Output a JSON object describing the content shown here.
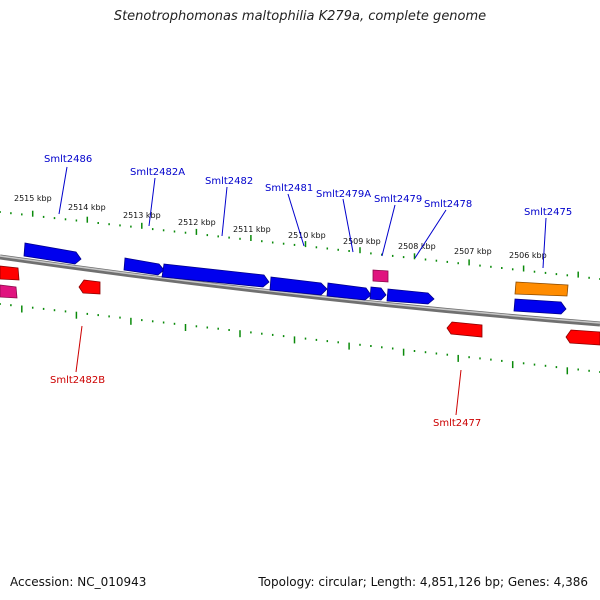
{
  "title": "Stenotrophomonas maltophilia K279a, complete genome",
  "footer": {
    "accession": "Accession: NC_010943",
    "summary": "Topology: circular; Length: 4,851,126 bp; Genes: 4,386"
  },
  "colors": {
    "forward_gene": "#0000ee",
    "reverse_gene": "#ff0000",
    "rna_gene": "#e0147f",
    "special_gene": "#ff8c00",
    "backbone": "#808080",
    "tick": "#0a8a0a",
    "forward_label": "#0000cc",
    "reverse_label": "#cc0000"
  },
  "kbp_labels": [
    "2515 kbp",
    "2514 kbp",
    "2513 kbp",
    "2512 kbp",
    "2511 kbp",
    "2510 kbp",
    "2509 kbp",
    "2508 kbp",
    "2507 kbp",
    "2506 kbp"
  ],
  "forward_gene_labels": [
    "Smlt2486",
    "Smlt2482A",
    "Smlt2482",
    "Smlt2481",
    "Smlt2479A",
    "Smlt2479",
    "Smlt2478",
    "Smlt2475"
  ],
  "reverse_gene_labels": [
    "Smlt2482B",
    "Smlt2477"
  ]
}
